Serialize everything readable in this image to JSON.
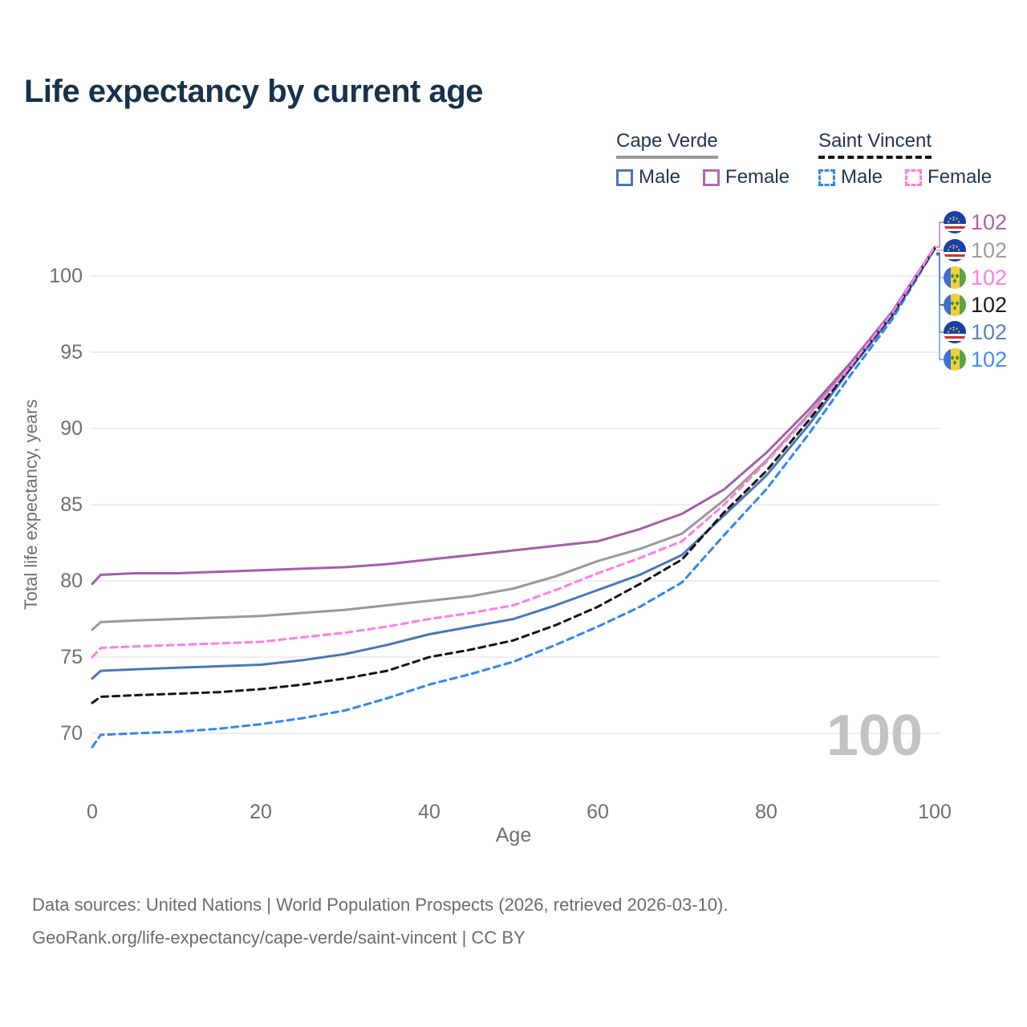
{
  "title": "Life expectancy by current age",
  "legend": {
    "groups": [
      {
        "name": "Cape Verde",
        "line_style": "solid",
        "line_color": "#9b9b9b",
        "items": [
          {
            "label": "Male",
            "color": "#4a77b5",
            "dashed": false
          },
          {
            "label": "Female",
            "color": "#aa6cae",
            "dashed": false
          }
        ]
      },
      {
        "name": "Saint Vincent",
        "line_style": "dashed",
        "line_color": "#141414",
        "items": [
          {
            "label": "Male",
            "color": "#2f86f2",
            "dashed": true
          },
          {
            "label": "Female",
            "color": "#ff7ce0",
            "dashed": true
          }
        ]
      }
    ]
  },
  "hover_age_indicator": "100",
  "end_labels": [
    {
      "flag": "cape-verde",
      "value": "102",
      "color": "#a864ab"
    },
    {
      "flag": "cape-verde",
      "value": "102",
      "color": "#9e9e9e"
    },
    {
      "flag": "saint-vincent",
      "value": "102",
      "color": "#ff7ce8"
    },
    {
      "flag": "saint-vincent",
      "value": "102",
      "color": "#1a1a1a"
    },
    {
      "flag": "cape-verde",
      "value": "102",
      "color": "#5b83bf"
    },
    {
      "flag": "saint-vincent",
      "value": "102",
      "color": "#3f8df2"
    }
  ],
  "chart_data": {
    "type": "line",
    "title": "Life expectancy by current age",
    "xlabel": "Age",
    "ylabel": "Total life expectancy, years",
    "x_ticks": [
      0,
      20,
      40,
      60,
      80,
      100
    ],
    "y_ticks": [
      70,
      75,
      80,
      85,
      90,
      95,
      100
    ],
    "xlim": [
      0,
      100
    ],
    "ylim": [
      70,
      100
    ],
    "grid": "horizontal",
    "legend_position": "top-right",
    "ages": [
      0,
      1,
      5,
      10,
      15,
      20,
      25,
      30,
      35,
      40,
      45,
      50,
      55,
      60,
      65,
      70,
      75,
      80,
      85,
      90,
      95,
      100
    ],
    "series": [
      {
        "name": "Cape Verde Female",
        "country": "Cape Verde",
        "sex": "Female",
        "style": "solid",
        "color": "#a25fa8",
        "values": [
          79.8,
          80.4,
          80.5,
          80.5,
          80.6,
          80.7,
          80.8,
          80.9,
          81.1,
          81.4,
          81.7,
          82.0,
          82.3,
          82.6,
          83.4,
          84.4,
          86.0,
          88.4,
          91.2,
          94.3,
          97.7,
          101.9
        ]
      },
      {
        "name": "Cape Verde Both sexes",
        "country": "Cape Verde",
        "sex": "Both",
        "style": "solid",
        "color": "#999999",
        "values": [
          76.8,
          77.3,
          77.4,
          77.5,
          77.6,
          77.7,
          77.9,
          78.1,
          78.4,
          78.7,
          79.0,
          79.5,
          80.3,
          81.3,
          82.1,
          83.1,
          85.3,
          87.9,
          90.9,
          94.2,
          97.6,
          101.9
        ]
      },
      {
        "name": "Saint Vincent Female",
        "country": "Saint Vincent",
        "sex": "Female",
        "style": "dashed",
        "color": "#ff7ce8",
        "values": [
          75.0,
          75.6,
          75.7,
          75.8,
          75.9,
          76.0,
          76.3,
          76.6,
          77.0,
          77.5,
          77.9,
          78.4,
          79.4,
          80.5,
          81.5,
          82.6,
          85.0,
          87.8,
          90.8,
          94.1,
          97.6,
          101.9
        ]
      },
      {
        "name": "Saint Vincent Both sexes",
        "country": "Saint Vincent",
        "sex": "Both",
        "style": "dashed",
        "color": "#141414",
        "values": [
          72.0,
          72.4,
          72.5,
          72.6,
          72.7,
          72.9,
          73.2,
          73.6,
          74.1,
          75.0,
          75.5,
          76.1,
          77.1,
          78.3,
          79.8,
          81.4,
          84.5,
          87.2,
          90.5,
          94.0,
          97.5,
          101.8
        ]
      },
      {
        "name": "Cape Verde Male",
        "country": "Cape Verde",
        "sex": "Male",
        "style": "solid",
        "color": "#4a77b5",
        "values": [
          73.6,
          74.1,
          74.2,
          74.3,
          74.4,
          74.5,
          74.8,
          75.2,
          75.8,
          76.5,
          77.0,
          77.5,
          78.4,
          79.4,
          80.4,
          81.7,
          84.3,
          86.9,
          90.2,
          93.9,
          97.4,
          101.8
        ]
      },
      {
        "name": "Saint Vincent Male",
        "country": "Saint Vincent",
        "sex": "Male",
        "style": "dashed",
        "color": "#2f86f2",
        "values": [
          69.1,
          69.9,
          70.0,
          70.1,
          70.3,
          70.6,
          71.0,
          71.5,
          72.3,
          73.2,
          73.9,
          74.7,
          75.8,
          77.0,
          78.3,
          79.9,
          83.0,
          86.0,
          89.6,
          93.5,
          97.2,
          101.8
        ]
      }
    ]
  },
  "footer": {
    "line1": "Data sources: United Nations | World Population Prospects (2026, retrieved 2026-03-10).",
    "line2": "GeoRank.org/life-expectancy/cape-verde/saint-vincent | CC BY"
  }
}
